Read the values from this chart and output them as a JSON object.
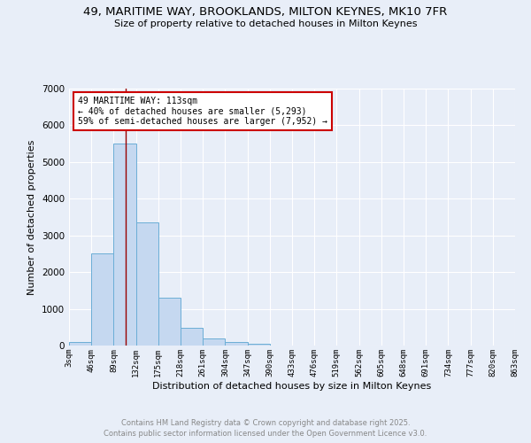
{
  "title": "49, MARITIME WAY, BROOKLANDS, MILTON KEYNES, MK10 7FR",
  "subtitle": "Size of property relative to detached houses in Milton Keynes",
  "xlabel": "Distribution of detached houses by size in Milton Keynes",
  "ylabel": "Number of detached properties",
  "bin_edges": [
    3,
    46,
    89,
    132,
    175,
    218,
    261,
    304,
    347,
    390,
    433,
    476,
    519,
    562,
    605,
    648,
    691,
    734,
    777,
    820,
    863
  ],
  "bar_heights": [
    100,
    2500,
    5500,
    3350,
    1300,
    480,
    190,
    90,
    50,
    0,
    0,
    0,
    0,
    0,
    0,
    0,
    0,
    0,
    0,
    0
  ],
  "bar_color": "#c5d8f0",
  "bar_edge_color": "#6baed6",
  "background_color": "#e8eef8",
  "grid_color": "#ffffff",
  "red_line_x": 113,
  "annotation_line1": "49 MARITIME WAY: 113sqm",
  "annotation_line2": "← 40% of detached houses are smaller (5,293)",
  "annotation_line3": "59% of semi-detached houses are larger (7,952) →",
  "annotation_box_color": "#ffffff",
  "annotation_box_edge_color": "#cc0000",
  "annotation_text_color": "#000000",
  "red_line_color": "#990000",
  "ylim": [
    0,
    7000
  ],
  "yticks": [
    0,
    1000,
    2000,
    3000,
    4000,
    5000,
    6000,
    7000
  ],
  "footer_line1": "Contains HM Land Registry data © Crown copyright and database right 2025.",
  "footer_line2": "Contains public sector information licensed under the Open Government Licence v3.0.",
  "footer_color": "#888888"
}
